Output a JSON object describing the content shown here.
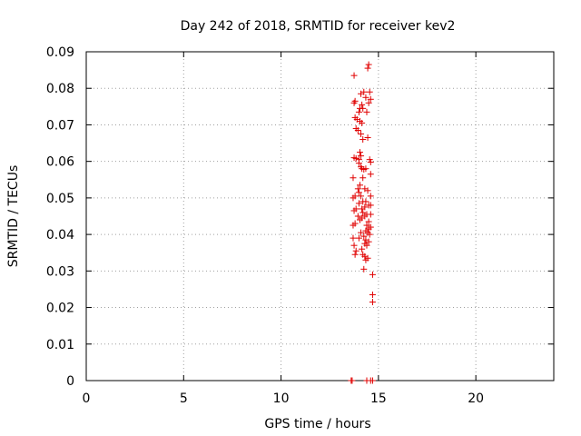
{
  "chart_data": {
    "type": "scatter",
    "title": "Day 242 of 2018, SRMTID for receiver kev2",
    "xlabel": "GPS time / hours",
    "ylabel": "SRMTID / TECUs",
    "xlim": [
      0,
      24
    ],
    "ylim": [
      0,
      0.09
    ],
    "x_ticks": [
      0,
      5,
      10,
      15,
      20
    ],
    "x_tick_labels": [
      "0",
      "5",
      "10",
      "15",
      "20"
    ],
    "y_ticks": [
      0,
      0.01,
      0.02,
      0.03,
      0.04,
      0.05,
      0.06,
      0.07,
      0.08,
      0.09
    ],
    "y_tick_labels": [
      "0",
      "0.01",
      "0.02",
      "0.03",
      "0.04",
      "0.05",
      "0.06",
      "0.07",
      "0.08",
      "0.09"
    ],
    "grid": true,
    "marker": "+",
    "marker_color": "#e00000",
    "series": [
      {
        "name": "SRMTID",
        "points": [
          [
            13.6,
            0.0
          ],
          [
            13.65,
            0.0
          ],
          [
            14.4,
            0.0
          ],
          [
            14.6,
            0.0
          ],
          [
            14.7,
            0.0
          ],
          [
            13.75,
            0.0835
          ],
          [
            14.5,
            0.0865
          ],
          [
            14.45,
            0.0855
          ],
          [
            14.1,
            0.0785
          ],
          [
            14.25,
            0.079
          ],
          [
            14.55,
            0.079
          ],
          [
            14.35,
            0.0775
          ],
          [
            14.6,
            0.077
          ],
          [
            14.5,
            0.076
          ],
          [
            13.8,
            0.0765
          ],
          [
            13.75,
            0.076
          ],
          [
            14.15,
            0.0755
          ],
          [
            14.05,
            0.0745
          ],
          [
            14.2,
            0.0745
          ],
          [
            14.0,
            0.0735
          ],
          [
            14.4,
            0.0735
          ],
          [
            13.8,
            0.072
          ],
          [
            13.9,
            0.0715
          ],
          [
            14.05,
            0.071
          ],
          [
            14.15,
            0.0705
          ],
          [
            13.85,
            0.069
          ],
          [
            13.95,
            0.0685
          ],
          [
            14.1,
            0.0675
          ],
          [
            14.45,
            0.0665
          ],
          [
            14.2,
            0.066
          ],
          [
            14.05,
            0.0625
          ],
          [
            14.1,
            0.0615
          ],
          [
            13.75,
            0.061
          ],
          [
            13.85,
            0.0608
          ],
          [
            14.0,
            0.0605
          ],
          [
            14.55,
            0.0605
          ],
          [
            14.6,
            0.0598
          ],
          [
            14.0,
            0.0595
          ],
          [
            14.1,
            0.0585
          ],
          [
            14.15,
            0.058
          ],
          [
            14.25,
            0.0578
          ],
          [
            14.35,
            0.058
          ],
          [
            14.6,
            0.0565
          ],
          [
            13.7,
            0.0555
          ],
          [
            14.2,
            0.0555
          ],
          [
            14.05,
            0.0535
          ],
          [
            13.95,
            0.0525
          ],
          [
            14.3,
            0.0525
          ],
          [
            14.45,
            0.052
          ],
          [
            14.0,
            0.0515
          ],
          [
            13.8,
            0.0505
          ],
          [
            14.1,
            0.0505
          ],
          [
            14.6,
            0.0505
          ],
          [
            13.7,
            0.05
          ],
          [
            14.2,
            0.049
          ],
          [
            14.35,
            0.049
          ],
          [
            14.0,
            0.0485
          ],
          [
            14.5,
            0.048
          ],
          [
            14.6,
            0.048
          ],
          [
            14.3,
            0.0475
          ],
          [
            13.85,
            0.047
          ],
          [
            14.15,
            0.047
          ],
          [
            13.75,
            0.0465
          ],
          [
            14.2,
            0.046
          ],
          [
            14.6,
            0.0455
          ],
          [
            14.4,
            0.0455
          ],
          [
            13.95,
            0.045
          ],
          [
            14.3,
            0.045
          ],
          [
            14.15,
            0.0445
          ],
          [
            14.05,
            0.044
          ],
          [
            14.5,
            0.0435
          ],
          [
            13.8,
            0.043
          ],
          [
            13.7,
            0.0425
          ],
          [
            14.4,
            0.0425
          ],
          [
            14.6,
            0.042
          ],
          [
            14.5,
            0.0415
          ],
          [
            14.35,
            0.041
          ],
          [
            14.45,
            0.0405
          ],
          [
            14.1,
            0.0405
          ],
          [
            14.55,
            0.04
          ],
          [
            14.25,
            0.0395
          ],
          [
            13.7,
            0.039
          ],
          [
            14.0,
            0.039
          ],
          [
            14.35,
            0.0385
          ],
          [
            14.5,
            0.038
          ],
          [
            14.3,
            0.0375
          ],
          [
            13.75,
            0.037
          ],
          [
            14.4,
            0.037
          ],
          [
            14.15,
            0.036
          ],
          [
            13.85,
            0.0355
          ],
          [
            13.8,
            0.0345
          ],
          [
            14.2,
            0.0345
          ],
          [
            14.3,
            0.034
          ],
          [
            14.45,
            0.0335
          ],
          [
            14.35,
            0.033
          ],
          [
            14.25,
            0.0305
          ],
          [
            14.7,
            0.029
          ],
          [
            14.7,
            0.0235
          ],
          [
            14.7,
            0.0215
          ]
        ]
      }
    ]
  }
}
